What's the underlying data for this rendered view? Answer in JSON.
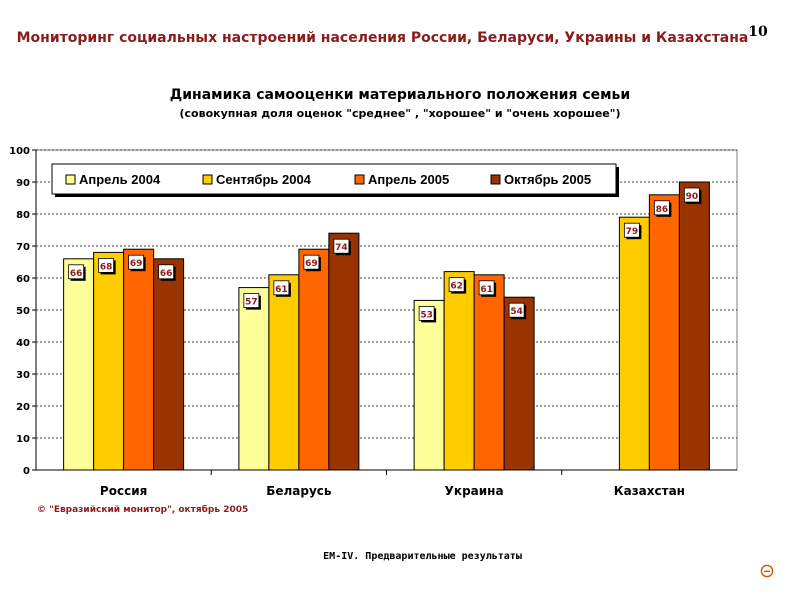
{
  "header": {
    "title": "Мониторинг социальных настроений населения России, Беларуси, Украины и Казахстана",
    "page_number": "10"
  },
  "chart_data": {
    "type": "bar",
    "title": "Динамика самооценки материального положения семьи",
    "subtitle": "(совокупная доля оценок \"среднее\" , \"хорошее\" и \"очень хорошее\")",
    "categories": [
      "Россия",
      "Беларусь",
      "Украина",
      "Казахстан"
    ],
    "series": [
      {
        "name": "Апрель 2004",
        "color": "#ffff99",
        "values": [
          66,
          57,
          53,
          null
        ]
      },
      {
        "name": "Сентябрь 2004",
        "color": "#ffcc00",
        "values": [
          68,
          61,
          62,
          79
        ]
      },
      {
        "name": "Апрель 2005",
        "color": "#ff6600",
        "values": [
          69,
          69,
          61,
          86
        ]
      },
      {
        "name": "Октябрь 2005",
        "color": "#993300",
        "values": [
          66,
          74,
          54,
          90
        ]
      }
    ],
    "ylim": [
      0,
      100
    ],
    "yticks": [
      0,
      10,
      20,
      30,
      40,
      50,
      60,
      70,
      80,
      90,
      100
    ],
    "grid": true,
    "legend_position": "top",
    "label_color": "#8a1c1c"
  },
  "source_note": "© \"Евразийский монитор\", октябрь 2005",
  "footer": {
    "text": "EM-IV. Предварительные результаты"
  },
  "icons": {
    "corner": "circle-minus-icon"
  }
}
